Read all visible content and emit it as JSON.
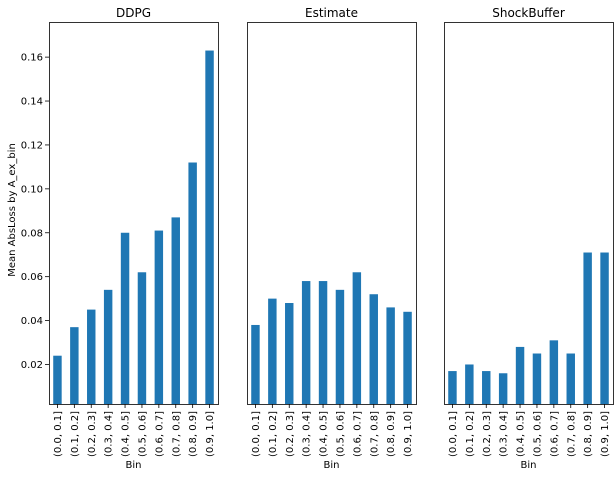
{
  "chart_data": {
    "type": "bar",
    "layout": "three-panels-shared-y",
    "ylabel": "Mean AbsLoss by A_ex_bin",
    "ylim": [
      0.002,
      0.176
    ],
    "yticks": [
      "0.02",
      "0.04",
      "0.06",
      "0.08",
      "0.10",
      "0.12",
      "0.14",
      "0.16"
    ],
    "bar_color": "#1f77b4",
    "grid": false,
    "categories": [
      "(0.0, 0.1]",
      "(0.1, 0.2]",
      "(0.2, 0.3]",
      "(0.3, 0.4]",
      "(0.4, 0.5]",
      "(0.5, 0.6]",
      "(0.6, 0.7]",
      "(0.7, 0.8]",
      "(0.8, 0.9]",
      "(0.9, 1.0]"
    ],
    "panels": [
      {
        "title": "DDPG",
        "xlabel": "Bin",
        "values": [
          0.024,
          0.037,
          0.045,
          0.054,
          0.08,
          0.062,
          0.081,
          0.087,
          0.112,
          0.163
        ]
      },
      {
        "title": "Estimate",
        "xlabel": "Bin",
        "values": [
          0.038,
          0.05,
          0.048,
          0.058,
          0.058,
          0.054,
          0.062,
          0.052,
          0.046,
          0.044
        ]
      },
      {
        "title": "ShockBuffer",
        "xlabel": "Bin",
        "values": [
          0.017,
          0.02,
          0.017,
          0.016,
          0.028,
          0.025,
          0.031,
          0.025,
          0.071,
          0.071
        ]
      }
    ]
  }
}
